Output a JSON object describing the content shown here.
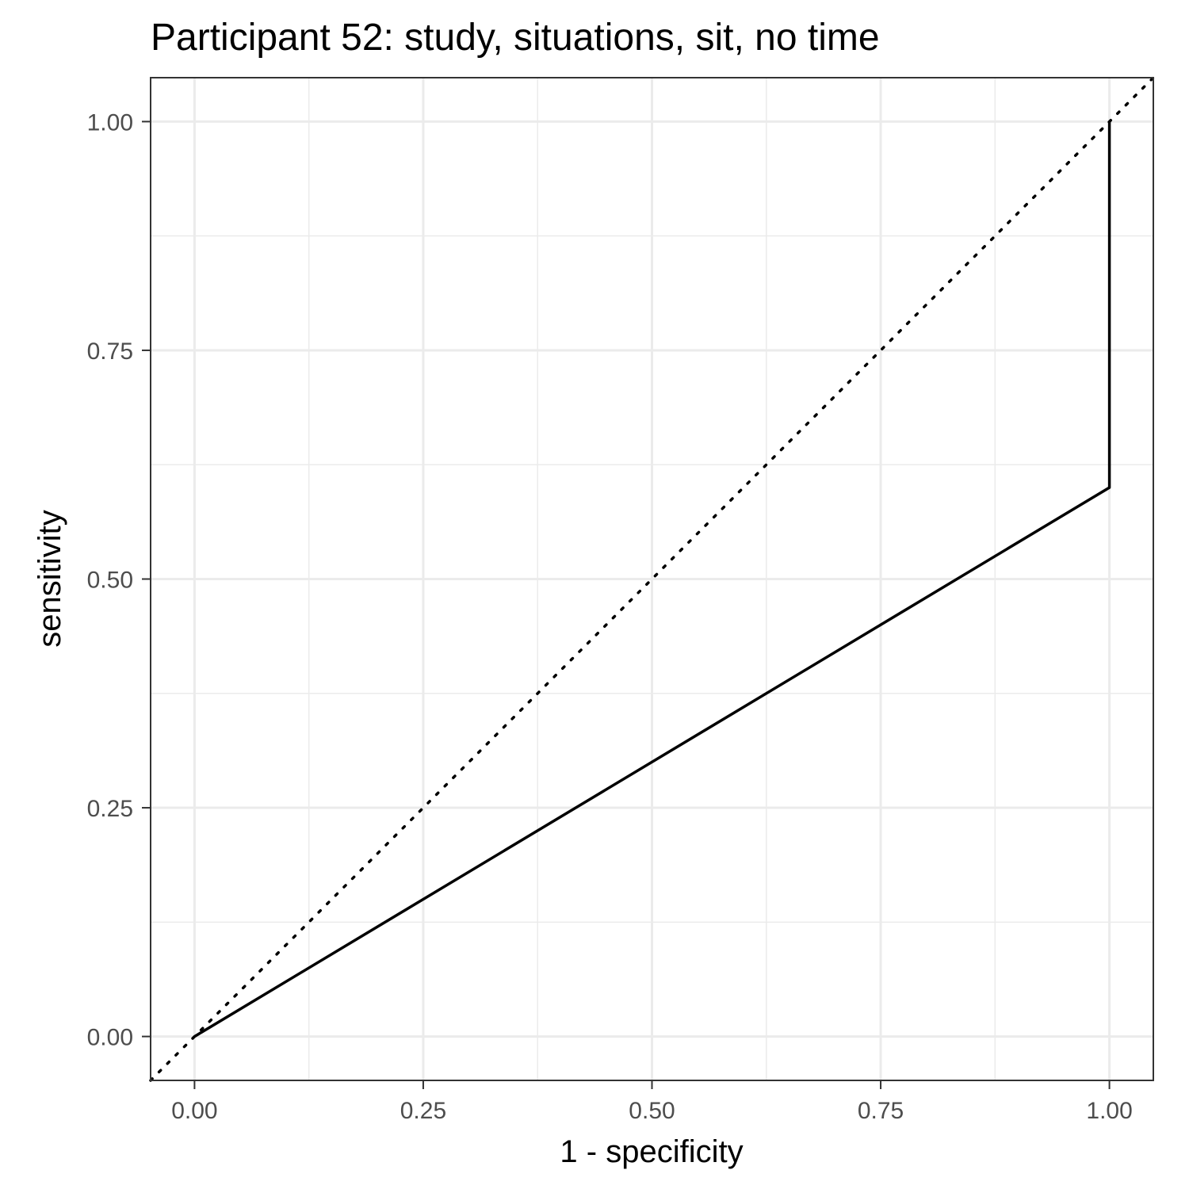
{
  "chart_data": {
    "type": "line",
    "title": "Participant 52: study, situations, sit, no time",
    "xlabel": "1 - specificity",
    "ylabel": "sensitivity",
    "xlim": [
      -0.048,
      1.048
    ],
    "ylim": [
      -0.048,
      1.048
    ],
    "x_ticks": [
      0,
      0.25,
      0.5,
      0.75,
      1
    ],
    "x_tick_labels": [
      "0.00",
      "0.25",
      "0.50",
      "0.75",
      "1.00"
    ],
    "y_ticks": [
      0,
      0.25,
      0.5,
      0.75,
      1
    ],
    "y_tick_labels": [
      "0.00",
      "0.25",
      "0.50",
      "0.75",
      "1.00"
    ],
    "grid": true,
    "series": [
      {
        "style": "solid",
        "color": "#000000",
        "x": [
          0,
          1,
          1
        ],
        "y": [
          0,
          0.6,
          1
        ]
      }
    ],
    "reference_line": {
      "style": "dotted",
      "color": "#000000",
      "x": [
        -0.048,
        1.048
      ],
      "y": [
        -0.048,
        1.048
      ]
    }
  }
}
